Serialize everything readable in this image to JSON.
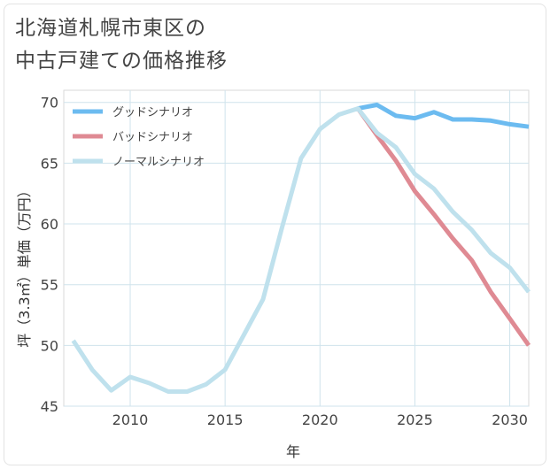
{
  "title_lines": [
    "北海道札幌市東区の",
    "中古戸建ての価格推移"
  ],
  "chart_data": {
    "type": "line",
    "title": "北海道札幌市東区の中古戸建ての価格推移",
    "xlabel": "年",
    "ylabel": "坪（3.3㎡）単価（万円）",
    "xlim": [
      2006.5,
      2031
    ],
    "ylim": [
      45,
      71
    ],
    "xticks": [
      2010,
      2015,
      2020,
      2025,
      2030
    ],
    "yticks": [
      45,
      50,
      55,
      60,
      65,
      70
    ],
    "grid": true,
    "legend_position": "top-left",
    "series": [
      {
        "name": "グッドシナリオ",
        "color": "#6cbbf0",
        "x": [
          2022,
          2023,
          2024,
          2025,
          2026,
          2027,
          2028,
          2029,
          2030,
          2031
        ],
        "values": [
          69.5,
          69.8,
          68.9,
          68.7,
          69.2,
          68.6,
          68.6,
          68.5,
          68.2,
          68.0
        ]
      },
      {
        "name": "バッドシナリオ",
        "color": "#df8a93",
        "x": [
          2022,
          2023,
          2024,
          2025,
          2026,
          2027,
          2028,
          2029,
          2030,
          2031
        ],
        "values": [
          69.5,
          67.3,
          65.2,
          62.7,
          60.8,
          58.8,
          57.0,
          54.4,
          52.2,
          50.0
        ]
      },
      {
        "name": "ノーマルシナリオ",
        "color": "#bfe1ed",
        "x": [
          2007,
          2008,
          2009,
          2010,
          2011,
          2012,
          2013,
          2014,
          2015,
          2016,
          2017,
          2018,
          2019,
          2020,
          2021,
          2022,
          2023,
          2024,
          2025,
          2026,
          2027,
          2028,
          2029,
          2030,
          2031
        ],
        "values": [
          50.4,
          48.0,
          46.3,
          47.4,
          46.9,
          46.2,
          46.2,
          46.8,
          48.0,
          50.9,
          53.8,
          59.7,
          65.4,
          67.8,
          69.0,
          69.5,
          67.5,
          66.3,
          64.1,
          62.9,
          61.0,
          59.5,
          57.6,
          56.4,
          54.4
        ]
      }
    ]
  }
}
